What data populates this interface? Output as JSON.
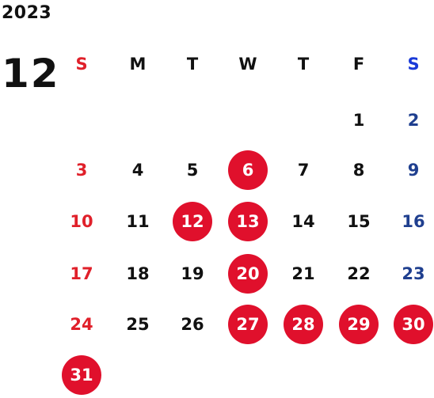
{
  "calendar": {
    "year": "2023",
    "month": "12",
    "weekdays": [
      "S",
      "M",
      "T",
      "W",
      "T",
      "F",
      "S"
    ],
    "first_weekday_index": 5,
    "days": [
      "1",
      "2",
      "3",
      "4",
      "5",
      "6",
      "7",
      "8",
      "9",
      "10",
      "11",
      "12",
      "13",
      "14",
      "15",
      "16",
      "17",
      "18",
      "19",
      "20",
      "21",
      "22",
      "23",
      "24",
      "25",
      "26",
      "27",
      "28",
      "29",
      "30",
      "31"
    ],
    "highlighted_days": [
      "6",
      "12",
      "13",
      "20",
      "27",
      "28",
      "29",
      "30",
      "31"
    ],
    "colors": {
      "sunday": "#e0202a",
      "saturday": "#1f3f8f",
      "saturday_header": "#1a3ad8",
      "weekday": "#111111",
      "highlight_bg": "#e0102c",
      "highlight_text": "#ffffff"
    }
  }
}
